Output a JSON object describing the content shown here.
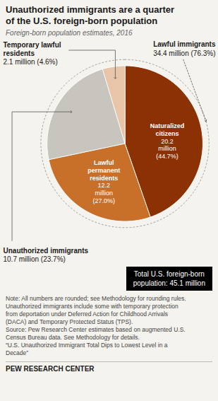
{
  "chart_data": {
    "type": "pie",
    "title": "Unauthorized immigrants are a quarter\nof the U.S. foreign-born population",
    "subtitle": "Foreign-born population estimates, 2016",
    "categories": [
      "Naturalized\ncitizens",
      "Lawful\npermanent\nresidents",
      "Unauthorized immigrants",
      "Temporary lawful\nresidents"
    ],
    "values": [
      20.2,
      12.2,
      10.7,
      2.1
    ],
    "value_labels": [
      "20.2\nmillion\n(44.7%)",
      "12.2\nmillion\n(27.0%)",
      "10.7 million (23.7%)",
      "2.1 million (4.6%)"
    ],
    "colors": [
      "#8B3103",
      "#C8702A",
      "#C8C5BE",
      "#E8C4A8"
    ],
    "annotations": [
      "Lawful immigrants\n34.4 million (76.3%)",
      "Total U.S. foreign-born\npopulation: 45.1 million"
    ],
    "note": "Note: All numbers are rounded; see Methodology for rounding rules.\nUnauthorized immigrants include some with temporary protection\nfrom deportation under Deferred Action for Childhood Arrivals\n(DACA) and Temporary Protected Status (TPS).\nSource: Pew Research Center estimates based on augmented U.S.\nCensus Bureau data. See Methodology for details.\n“U.S. Unauthorized Immigrant Total Dips to Lowest Level in a\nDecade”",
    "footer": "PEW RESEARCH CENTER"
  }
}
